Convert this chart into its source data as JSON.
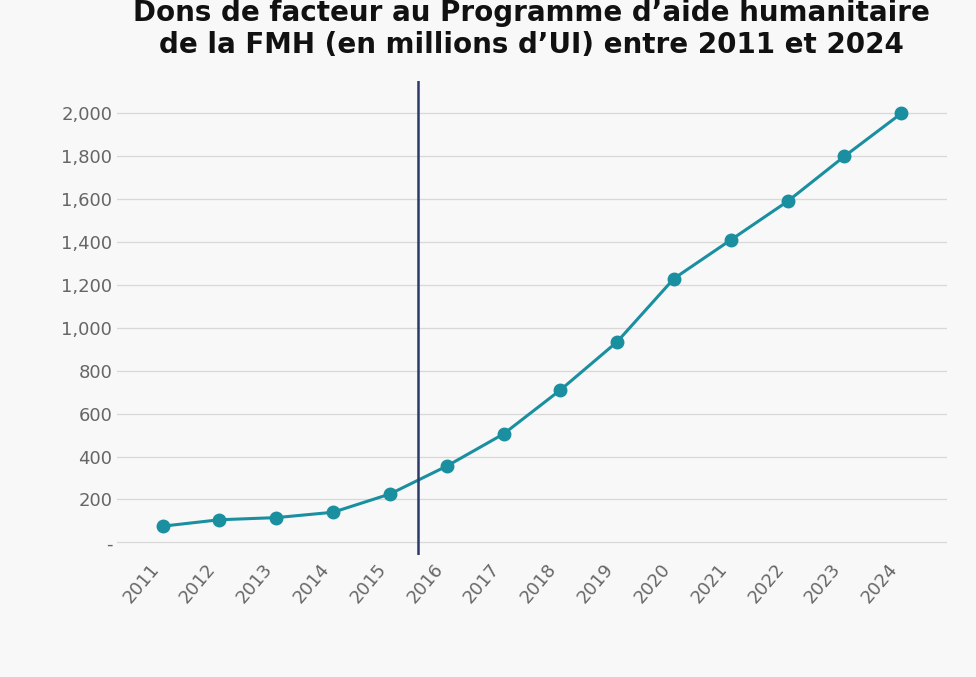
{
  "title_line1": "Dons de facteur au Programme d’aide humanitaire",
  "title_line2": "de la FMH (en millions d’UI) entre 2011 et 2024",
  "years": [
    2011,
    2012,
    2013,
    2014,
    2015,
    2016,
    2017,
    2018,
    2019,
    2020,
    2021,
    2022,
    2023,
    2024
  ],
  "values": [
    75,
    105,
    115,
    140,
    225,
    355,
    505,
    710,
    935,
    1230,
    1410,
    1590,
    1800,
    2000
  ],
  "line_color": "#1a8fa0",
  "marker_color": "#1a8fa0",
  "vline_x": 2015.5,
  "vline_color": "#2b3a6b",
  "ylim": [
    -60,
    2150
  ],
  "yticks": [
    0,
    200,
    400,
    600,
    800,
    1000,
    1200,
    1400,
    1600,
    1800,
    2000
  ],
  "ytick_labels": [
    "-",
    "200",
    "400",
    "600",
    "800",
    "1,000",
    "1,200",
    "1,400",
    "1,600",
    "1,800",
    "2,000"
  ],
  "background_color": "#f8f8f8",
  "grid_color": "#d8d8d8",
  "title_fontsize": 20,
  "tick_fontsize": 13,
  "xlim_left": 2010.2,
  "xlim_right": 2024.8
}
